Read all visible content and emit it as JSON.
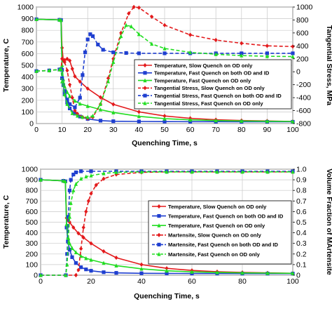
{
  "chart_data": [
    {
      "type": "line",
      "xlabel": "Quenching Time, s",
      "ylabel": "Temperature, C",
      "y2label": "Tangential Stress, MPa",
      "xlim": [
        0,
        100
      ],
      "ylim": [
        0,
        1000
      ],
      "y2lim": [
        -800,
        1000
      ],
      "xticks": [
        "0",
        "10",
        "20",
        "30",
        "40",
        "50",
        "60",
        "70",
        "80",
        "90",
        "100"
      ],
      "yticks": [
        "0",
        "100",
        "200",
        "300",
        "400",
        "500",
        "600",
        "700",
        "800",
        "900",
        "1000"
      ],
      "y2ticks": [
        "-800",
        "-600",
        "-400",
        "-200",
        "0",
        "200",
        "400",
        "600",
        "800",
        "1000"
      ],
      "grid": true,
      "legend_position": "right",
      "series": [
        {
          "name": "Temperature, Slow Quench on OD only",
          "axis": "left",
          "color": "#e31a1c",
          "dash": "solid",
          "marker": "diamond",
          "x": [
            0,
            9,
            9.6,
            10,
            10.5,
            11,
            12,
            13,
            14,
            15,
            17,
            20,
            25,
            30,
            40,
            50,
            60,
            70,
            80,
            90,
            100
          ],
          "y": [
            895,
            890,
            888,
            650,
            540,
            545,
            555,
            540,
            470,
            405,
            360,
            300,
            225,
            165,
            100,
            65,
            45,
            33,
            26,
            22,
            18
          ]
        },
        {
          "name": "Temperature, Fast Quench on both OD and ID",
          "axis": "left",
          "color": "#1f3fd0",
          "dash": "solid",
          "marker": "square",
          "x": [
            0,
            9,
            9.6,
            10,
            10.5,
            11,
            12,
            13,
            15,
            17,
            20,
            25,
            30,
            40,
            50,
            60,
            70,
            80,
            90,
            100
          ],
          "y": [
            895,
            890,
            888,
            460,
            330,
            250,
            180,
            130,
            85,
            60,
            40,
            25,
            20,
            18,
            17,
            16,
            16,
            15,
            15,
            15
          ]
        },
        {
          "name": "Temperature, Fast Quench on OD only",
          "axis": "left",
          "color": "#22dd22",
          "dash": "solid",
          "marker": "triangle",
          "x": [
            0,
            9,
            9.6,
            10,
            10.5,
            11,
            12,
            13,
            15,
            17,
            20,
            25,
            30,
            40,
            50,
            60,
            70,
            80,
            90,
            100
          ],
          "y": [
            895,
            890,
            888,
            500,
            380,
            320,
            270,
            235,
            195,
            170,
            150,
            120,
            95,
            62,
            42,
            32,
            26,
            22,
            20,
            18
          ]
        },
        {
          "name": "Tangential Stress, Slow Quench on OD only",
          "axis": "right",
          "color": "#e31a1c",
          "dash": "dashed",
          "marker": "diamond",
          "x": [
            0,
            5,
            9,
            9.6,
            10,
            11,
            12,
            13,
            14,
            15,
            16,
            18,
            20,
            22,
            25,
            28,
            30,
            33,
            36,
            38,
            40,
            45,
            50,
            60,
            70,
            80,
            90,
            100
          ],
          "y": [
            10,
            20,
            35,
            40,
            200,
            150,
            20,
            -200,
            -400,
            -600,
            -650,
            -700,
            -720,
            -700,
            -500,
            -100,
            200,
            600,
            900,
            1000,
            990,
            850,
            720,
            570,
            490,
            440,
            400,
            390
          ]
        },
        {
          "name": "Tangential Stress, Fast Quench on both OD and ID",
          "axis": "right",
          "color": "#1f3fd0",
          "dash": "dashed",
          "marker": "square",
          "x": [
            0,
            5,
            9,
            9.6,
            10,
            11,
            12,
            13,
            15,
            17,
            18,
            19,
            20,
            21,
            22,
            24,
            26,
            30,
            35,
            40,
            50,
            60,
            70,
            80,
            90,
            100
          ],
          "y": [
            10,
            20,
            35,
            40,
            -100,
            -300,
            -430,
            -500,
            -550,
            -400,
            -50,
            300,
            500,
            580,
            550,
            420,
            340,
            300,
            290,
            285,
            285,
            285,
            285,
            285,
            285,
            285
          ]
        },
        {
          "name": "Tangential Stress, Fast Quench on OD only",
          "axis": "right",
          "color": "#22dd22",
          "dash": "dashed",
          "marker": "triangle",
          "x": [
            0,
            5,
            9,
            9.6,
            10,
            11,
            12,
            14,
            16,
            18,
            20,
            22,
            25,
            28,
            30,
            33,
            35,
            37,
            40,
            45,
            50,
            60,
            70,
            80,
            90,
            100
          ],
          "y": [
            10,
            20,
            35,
            40,
            -150,
            -350,
            -500,
            -640,
            -680,
            -700,
            -700,
            -680,
            -500,
            -150,
            150,
            550,
            720,
            700,
            580,
            430,
            360,
            300,
            270,
            250,
            240,
            235
          ]
        }
      ]
    },
    {
      "type": "line",
      "xlabel": "Quenching Time, s",
      "ylabel": "Temperature, C",
      "y2label": "Volume Fraction of MArtensite",
      "xlim": [
        0,
        100
      ],
      "ylim": [
        0,
        1000
      ],
      "y2lim": [
        0,
        1.0
      ],
      "xticks": [
        "0",
        "20",
        "40",
        "60",
        "80",
        "100"
      ],
      "yticks": [
        "0",
        "100",
        "200",
        "300",
        "400",
        "500",
        "600",
        "700",
        "800",
        "900",
        "1000"
      ],
      "y2ticks": [
        "0",
        "0.1",
        "0.2",
        "0.3",
        "0.4",
        "0.5",
        "0.6",
        "0.7",
        "0.8",
        "0.9",
        "1.0"
      ],
      "grid": true,
      "legend_position": "right",
      "series": [
        {
          "name": "Temperature, Slow Quench on OD only",
          "axis": "left",
          "color": "#e31a1c",
          "dash": "solid",
          "marker": "diamond",
          "x": [
            0,
            9,
            9.8,
            10.3,
            10.8,
            11.5,
            13,
            15,
            17,
            20,
            25,
            30,
            40,
            50,
            60,
            70,
            80,
            90,
            100
          ],
          "y": [
            900,
            890,
            885,
            540,
            520,
            500,
            450,
            395,
            355,
            300,
            225,
            165,
            100,
            65,
            45,
            33,
            26,
            22,
            18
          ]
        },
        {
          "name": "Temperature, Fast Quench on both OD and ID",
          "axis": "left",
          "color": "#1f3fd0",
          "dash": "solid",
          "marker": "square",
          "x": [
            0,
            9,
            9.8,
            10.3,
            10.8,
            11.5,
            12.5,
            14,
            16,
            18,
            20,
            25,
            30,
            40,
            50,
            60,
            70,
            80,
            90,
            100
          ],
          "y": [
            900,
            890,
            885,
            450,
            320,
            240,
            170,
            115,
            75,
            55,
            42,
            28,
            22,
            18,
            17,
            16,
            16,
            15,
            15,
            15
          ]
        },
        {
          "name": "Temperature, Fast Quench on OD only",
          "axis": "left",
          "color": "#22dd22",
          "dash": "solid",
          "marker": "triangle",
          "x": [
            0,
            9,
            9.8,
            10.3,
            10.8,
            11.5,
            12.5,
            14,
            16,
            18,
            20,
            25,
            30,
            40,
            50,
            60,
            70,
            80,
            90,
            100
          ],
          "y": [
            900,
            890,
            885,
            480,
            360,
            300,
            255,
            215,
            180,
            160,
            145,
            115,
            90,
            60,
            42,
            32,
            26,
            22,
            20,
            18
          ]
        },
        {
          "name": "Martensite, Slow Quench on OD only",
          "axis": "right",
          "color": "#e31a1c",
          "dash": "dashed",
          "marker": "diamond",
          "x": [
            0,
            10,
            14,
            15,
            16,
            17,
            18,
            19,
            20,
            22,
            25,
            30,
            40,
            50,
            60,
            70,
            80,
            90,
            100
          ],
          "y": [
            0,
            0,
            0.0,
            0.05,
            0.25,
            0.45,
            0.6,
            0.7,
            0.77,
            0.85,
            0.91,
            0.95,
            0.97,
            0.975,
            0.975,
            0.975,
            0.975,
            0.975,
            0.975
          ]
        },
        {
          "name": "Martensite, Fast Quench on both OD and ID",
          "axis": "right",
          "color": "#1f3fd0",
          "dash": "dashed",
          "marker": "square",
          "x": [
            0,
            10,
            10.5,
            11,
            11.5,
            12,
            13,
            14,
            16,
            20,
            30,
            40,
            50,
            60,
            70,
            80,
            90,
            100
          ],
          "y": [
            0,
            0,
            0.2,
            0.55,
            0.8,
            0.9,
            0.95,
            0.97,
            0.98,
            0.98,
            0.98,
            0.98,
            0.98,
            0.98,
            0.98,
            0.98,
            0.98,
            0.98
          ]
        },
        {
          "name": "Martensite, Fast Quench on OD only",
          "axis": "right",
          "color": "#22dd22",
          "dash": "dashed",
          "marker": "triangle",
          "x": [
            0,
            10,
            10.5,
            11,
            11.5,
            12,
            13,
            14,
            16,
            18,
            20,
            25,
            30,
            40,
            50,
            60,
            70,
            80,
            90,
            100
          ],
          "y": [
            0,
            0,
            0.1,
            0.35,
            0.55,
            0.68,
            0.8,
            0.86,
            0.91,
            0.93,
            0.94,
            0.96,
            0.97,
            0.975,
            0.975,
            0.975,
            0.975,
            0.975,
            0.975,
            0.975
          ]
        }
      ]
    }
  ]
}
